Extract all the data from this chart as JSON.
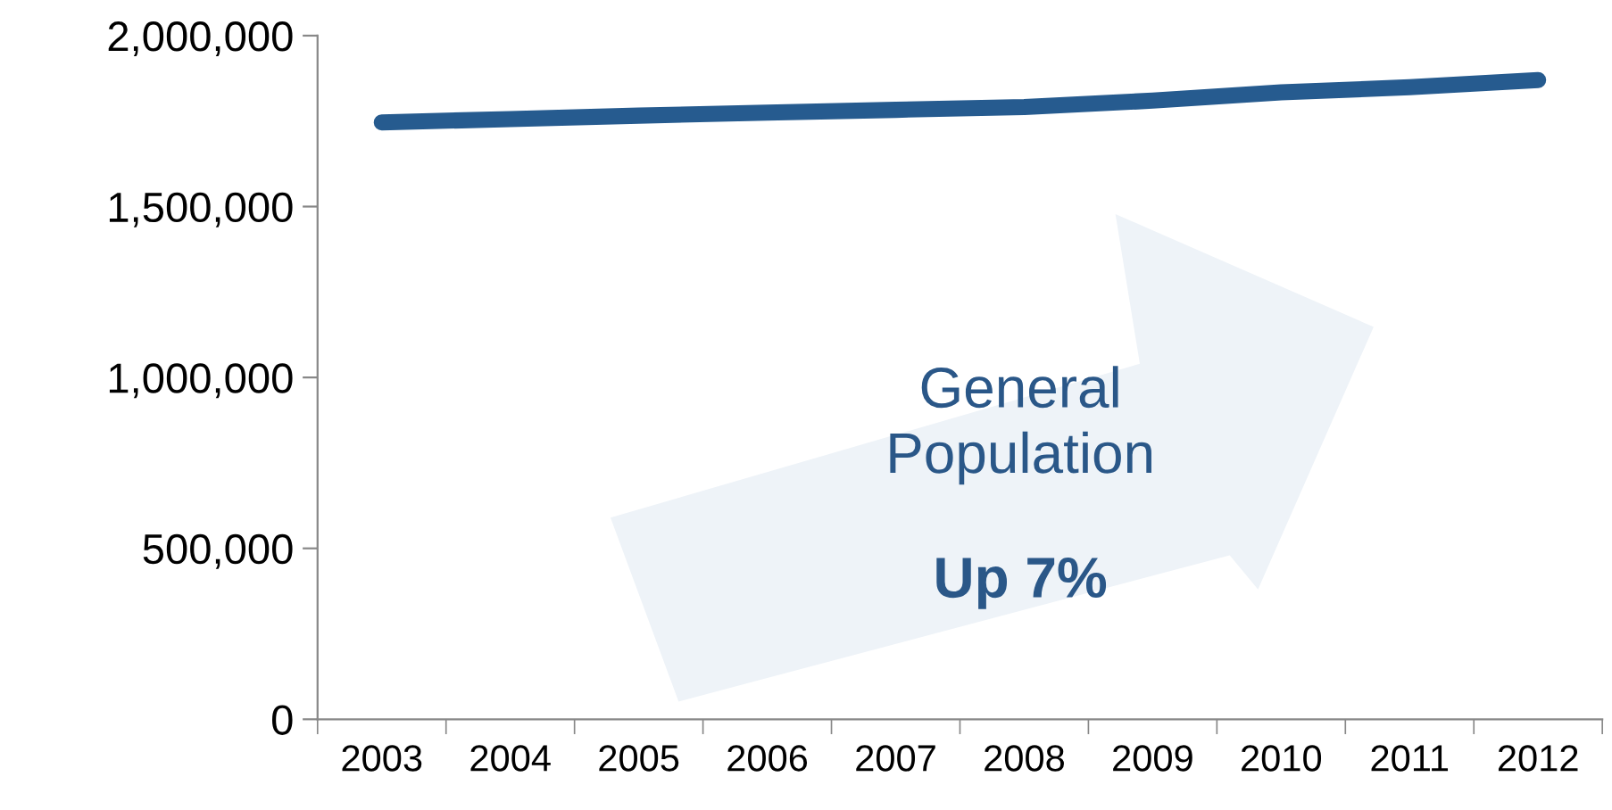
{
  "chart_data": {
    "type": "line",
    "categories": [
      "2003",
      "2004",
      "2005",
      "2006",
      "2007",
      "2008",
      "2009",
      "2010",
      "2011",
      "2012"
    ],
    "series": [
      {
        "color": "#265b8f",
        "values": [
          1746000,
          1756000,
          1766000,
          1775000,
          1783000,
          1791000,
          1810000,
          1834000,
          1849000,
          1870000
        ]
      }
    ],
    "ylim": [
      0,
      2000000
    ],
    "yticks": [
      {
        "value": 0,
        "label": "0"
      },
      {
        "value": 500000,
        "label": "500,000"
      },
      {
        "value": 1000000,
        "label": "1,000,000"
      },
      {
        "value": 1500000,
        "label": "1,500,000"
      },
      {
        "value": 2000000,
        "label": "2,000,000"
      }
    ],
    "annotations": [
      "General\nPopulation",
      "Up 7%"
    ],
    "grid": false,
    "marker": "none",
    "line_style": "solid"
  }
}
